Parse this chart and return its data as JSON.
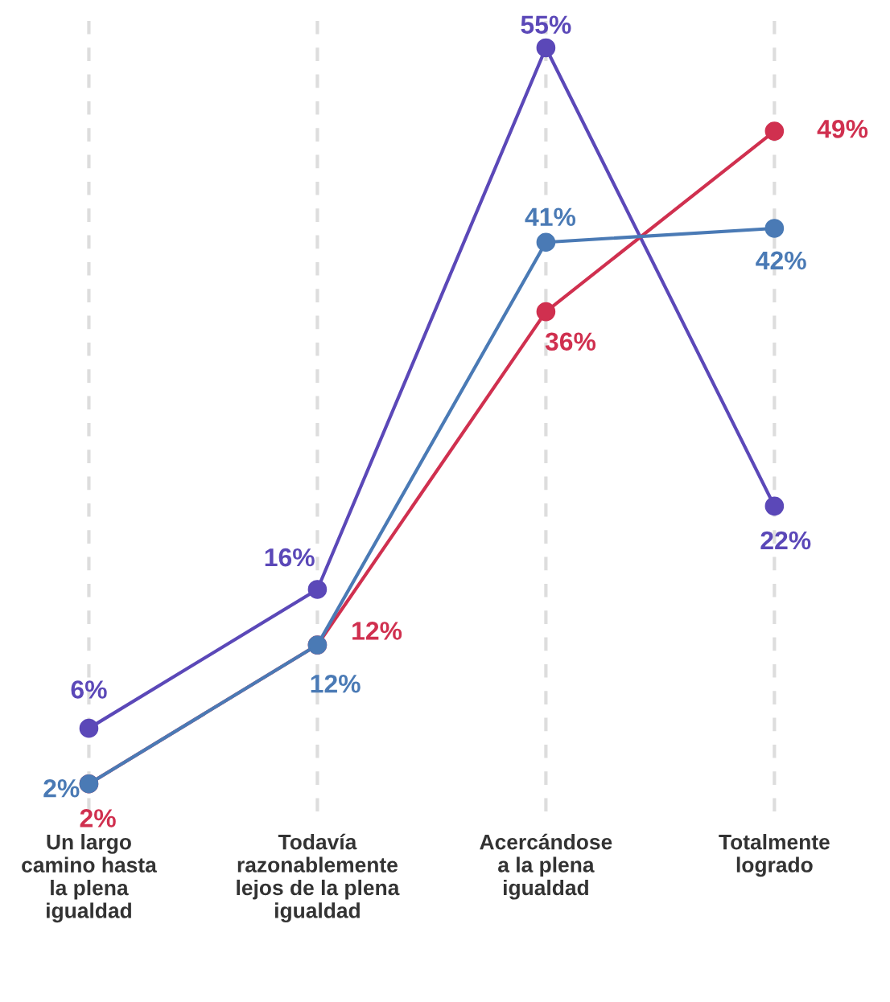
{
  "chart_data": {
    "type": "line",
    "categories": [
      "Un largo\ncamino hasta\nla plena\nigualdad",
      "Todavía\nrazonablemente\nlejos de la plena\nigualdad",
      "Acercándose\na la plena\nigualdad",
      "Totalmente\nlogrado"
    ],
    "series": [
      {
        "color": "#5b48b8",
        "values": [
          6,
          16,
          55,
          22
        ],
        "value_labels": [
          "6%",
          "16%",
          "55%",
          "22%"
        ]
      },
      {
        "color": "#d0304f",
        "values": [
          2,
          12,
          36,
          49
        ],
        "value_labels": [
          "2%",
          "12%",
          "36%",
          "49%"
        ]
      },
      {
        "color": "#4a7ab5",
        "values": [
          2,
          12,
          41,
          42
        ],
        "value_labels": [
          "2%",
          "12%",
          "41%",
          "42%"
        ]
      }
    ],
    "ylim": [
      0,
      57
    ],
    "tick_labels": "x",
    "grid": "x",
    "marker": "circle",
    "line_style": "solid"
  }
}
